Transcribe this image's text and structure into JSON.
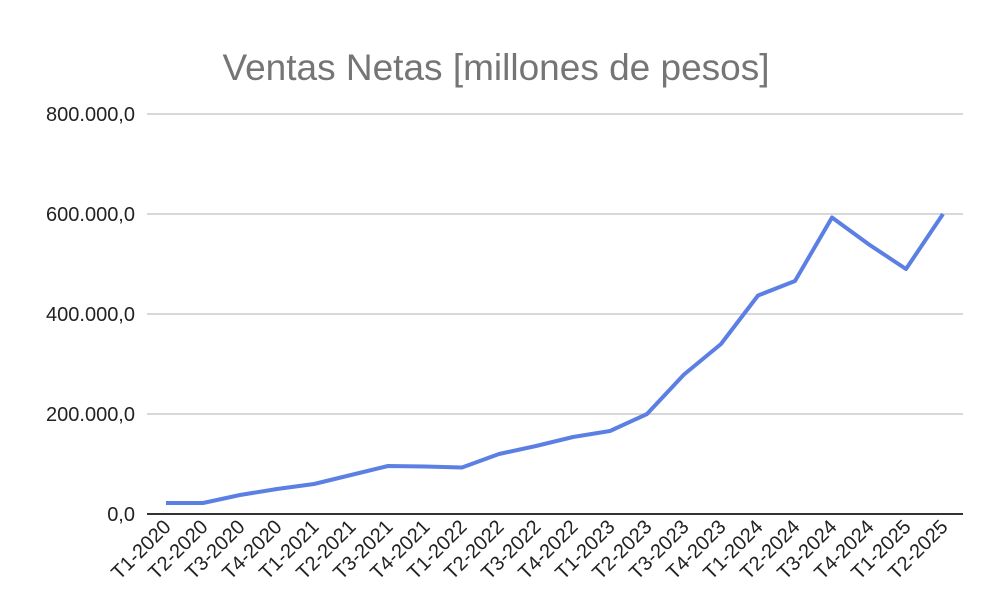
{
  "chart_data": {
    "type": "line",
    "title": "Ventas Netas [millones de pesos]",
    "xlabel": "",
    "ylabel": "",
    "ylim": [
      0,
      800000
    ],
    "yticks": [
      "0,0",
      "200.000,0",
      "400.000,0",
      "600.000,0",
      "800.000,0"
    ],
    "ytick_values": [
      0,
      200000,
      400000,
      600000,
      800000
    ],
    "grid": true,
    "legend": "none",
    "categories": [
      "T1-2020",
      "T2-2020",
      "T3-2020",
      "T4-2020",
      "T1-2021",
      "T2-2021",
      "T3-2021",
      "T4-2021",
      "T1-2022",
      "T2-2022",
      "T3-2022",
      "T4-2022",
      "T1-2023",
      "T2-2023",
      "T3-2023",
      "T4-2023",
      "T1-2024",
      "T2-2024",
      "T3-2024",
      "T4-2024",
      "T1-2025",
      "T2-2025"
    ],
    "series": [
      {
        "name": "Ventas Netas",
        "color": "#5b7fe3",
        "values": [
          22000,
          22000,
          38000,
          50000,
          60000,
          78000,
          96000,
          95000,
          93000,
          120000,
          136000,
          154000,
          166000,
          200000,
          279000,
          340000,
          437000,
          466000,
          593000,
          539000,
          490000,
          600000
        ]
      }
    ]
  }
}
